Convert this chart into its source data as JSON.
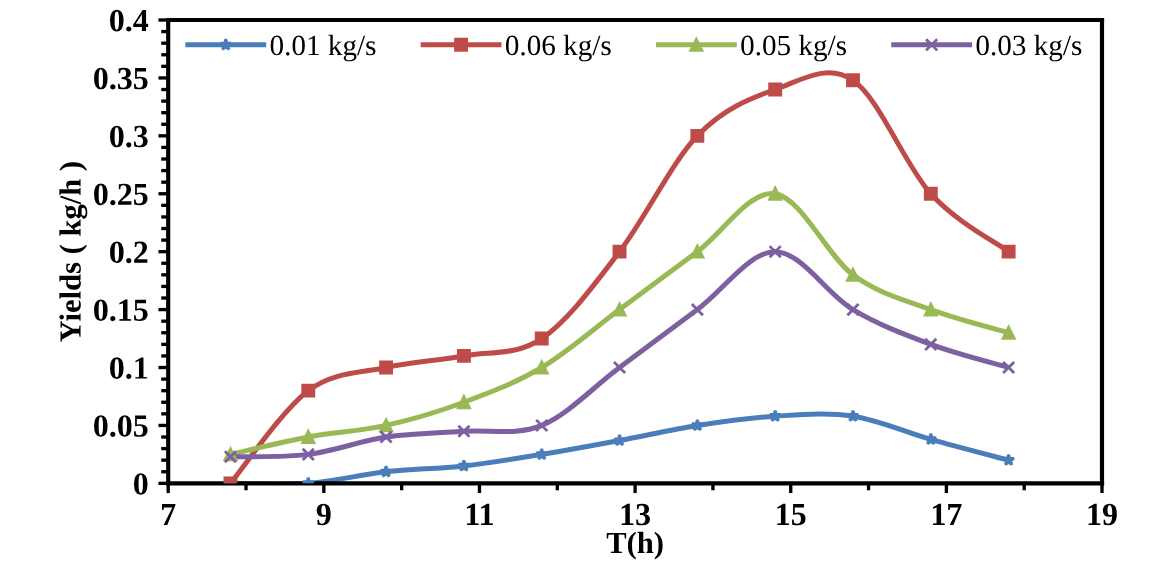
{
  "chart_data": {
    "type": "line",
    "xlabel": "T(h)",
    "ylabel": "Yields ( kg/h )",
    "x": [
      7.8,
      8.8,
      9.8,
      10.8,
      11.8,
      12.8,
      13.8,
      14.8,
      15.8,
      16.8,
      17.8
    ],
    "series": [
      {
        "name": "0.01 kg/s",
        "color": "#4a7ebb",
        "marker": "star",
        "values": [
          0,
          0,
          0.01,
          0.015,
          0.025,
          0.037,
          0.05,
          0.058,
          0.058,
          0.038,
          0.02
        ]
      },
      {
        "name": "0.06 kg/s",
        "color": "#be4b48",
        "marker": "square",
        "values": [
          0,
          0.08,
          0.1,
          0.11,
          0.125,
          0.2,
          0.3,
          0.34,
          0.348,
          0.25,
          0.2
        ]
      },
      {
        "name": "0.05 kg/s",
        "color": "#98b954",
        "marker": "triangle",
        "values": [
          0.025,
          0.04,
          0.05,
          0.07,
          0.1,
          0.15,
          0.2,
          0.25,
          0.18,
          0.15,
          0.13
        ]
      },
      {
        "name": "0.03 kg/s",
        "color": "#7d60a0",
        "marker": "cross",
        "values": [
          0.023,
          0.025,
          0.04,
          0.045,
          0.05,
          0.1,
          0.15,
          0.2,
          0.15,
          0.12,
          0.1
        ]
      }
    ],
    "xlim": [
      7,
      19
    ],
    "xticks": [
      7,
      9,
      11,
      13,
      15,
      17,
      19
    ],
    "ylim": [
      0,
      0.4
    ],
    "yticks": [
      0,
      0.05,
      0.1,
      0.15,
      0.2,
      0.25,
      0.3,
      0.35,
      0.4
    ],
    "grid": false,
    "legend": "top",
    "line_style": "solid"
  }
}
